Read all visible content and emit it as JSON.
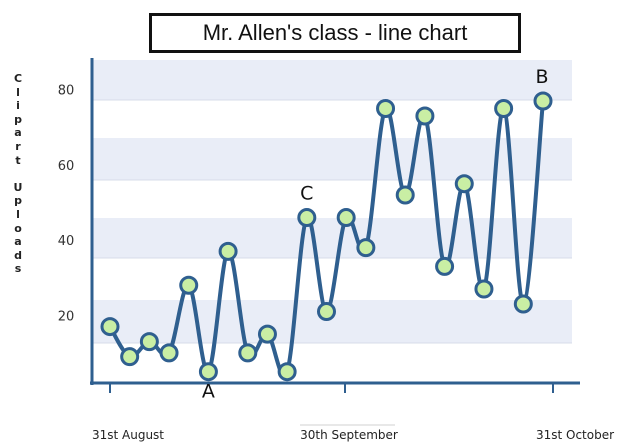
{
  "chart_data": {
    "type": "line",
    "title": "Mr. Allen's class - line chart",
    "ylabel": "Clipart Uploads",
    "xlabel": "",
    "x_tick_labels": [
      "31st August",
      "30th September",
      "31st October"
    ],
    "y_ticks": [
      20,
      40,
      60,
      80
    ],
    "ylim": [
      0,
      90
    ],
    "grid": "alternating horizontal bands",
    "series": [
      {
        "values": [
          17,
          9,
          13,
          10,
          28,
          5,
          37,
          10,
          15,
          5,
          46,
          21,
          46,
          38,
          75,
          52,
          73,
          33,
          55,
          27,
          75,
          23,
          77
        ]
      }
    ],
    "annotations": [
      {
        "text": "A",
        "point_index": 5
      },
      {
        "text": "C",
        "point_index": 10
      },
      {
        "text": "B",
        "point_index": 22
      }
    ],
    "colors": {
      "line": "#2f5f8f",
      "marker_fill": "#c9eea4",
      "marker_stroke": "#2f5f8f",
      "band": "#e9edf7",
      "axis": "#2f5f8f"
    }
  }
}
